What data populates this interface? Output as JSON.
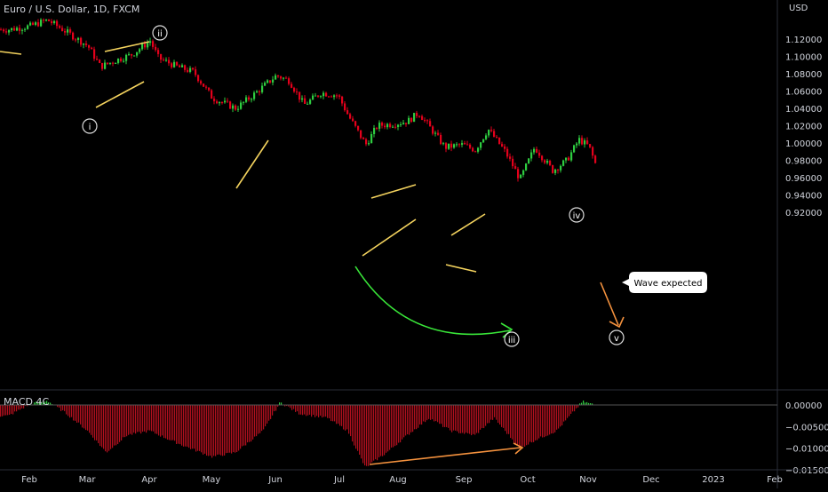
{
  "header": {
    "title": "Euro / U.S. Dollar, 1D, FXCM",
    "currency": "USD"
  },
  "macd": {
    "label": "MACD 4C",
    "ticks": [
      "0.00000",
      "−0.00500",
      "−0.01000",
      "−0.01500"
    ]
  },
  "colors": {
    "up": "#26a69a",
    "up_bright": "#2ecc40",
    "down": "#e3001b",
    "wedge": "#f4d35e",
    "arrow_orange": "#f5923e",
    "arrow_green": "#39e639",
    "bg": "#000000",
    "axis_text": "#d1d4dc"
  },
  "annotation": {
    "callout": "Wave expected"
  },
  "waves": [
    "i",
    "ii",
    "iii",
    "iv",
    "v"
  ],
  "chart_data": {
    "type": "candlestick",
    "price_axis": {
      "ticks": [
        "1.12000",
        "1.10000",
        "1.08000",
        "1.06000",
        "1.04000",
        "1.02000",
        "1.00000",
        "0.98000",
        "0.96000",
        "0.94000",
        "0.92000"
      ],
      "range": [
        0.92,
        1.13
      ]
    },
    "time_axis": {
      "ticks": [
        "Feb",
        "Mar",
        "Apr",
        "May",
        "Jun",
        "Jul",
        "Aug",
        "Sep",
        "Oct",
        "Nov",
        "Dec",
        "2023",
        "Feb"
      ]
    },
    "trend_path": [
      [
        "Jan 20",
        1.131
      ],
      [
        "Feb 1",
        1.135
      ],
      [
        "Feb 10",
        1.142
      ],
      [
        "Feb 20",
        1.128
      ],
      [
        "Mar 1",
        1.112
      ],
      [
        "Mar 7",
        1.088
      ],
      [
        "Mar 15",
        1.096
      ],
      [
        "Mar 22",
        1.102
      ],
      [
        "Mar 31",
        1.118
      ],
      [
        "Apr 5",
        1.098
      ],
      [
        "Apr 14",
        1.088
      ],
      [
        "Apr 22",
        1.082
      ],
      [
        "May 1",
        1.052
      ],
      [
        "May 12",
        1.04
      ],
      [
        "May 20",
        1.055
      ],
      [
        "May 31",
        1.078
      ],
      [
        "Jun 7",
        1.072
      ],
      [
        "Jun 14",
        1.044
      ],
      [
        "Jun 22",
        1.058
      ],
      [
        "Jun 30",
        1.055
      ],
      [
        "Jul 5",
        1.032
      ],
      [
        "Jul 14",
        0.998
      ],
      [
        "Jul 20",
        1.02
      ],
      [
        "Jul 28",
        1.022
      ],
      [
        "Aug 5",
        1.025
      ],
      [
        "Aug 10",
        1.035
      ],
      [
        "Aug 22",
        0.995
      ],
      [
        "Aug 30",
        0.998
      ],
      [
        "Sep 6",
        0.992
      ],
      [
        "Sep 12",
        1.016
      ],
      [
        "Sep 20",
        0.99
      ],
      [
        "Sep 27",
        0.958
      ],
      [
        "Oct 4",
        0.995
      ],
      [
        "Oct 13",
        0.968
      ],
      [
        "Oct 20",
        0.98
      ],
      [
        "Oct 26",
        1.004
      ],
      [
        "Nov 1",
        0.996
      ],
      [
        "Nov 4",
        0.976
      ]
    ],
    "macd_path": [
      [
        "Jan 20",
        -0.0025
      ],
      [
        "Feb 1",
        0.0002
      ],
      [
        "Feb 10",
        0.001
      ],
      [
        "Feb 20",
        -0.002
      ],
      [
        "Mar 1",
        -0.006
      ],
      [
        "Mar 10",
        -0.011
      ],
      [
        "Mar 20",
        -0.007
      ],
      [
        "Apr 1",
        -0.006
      ],
      [
        "Apr 15",
        -0.009
      ],
      [
        "May 1",
        -0.012
      ],
      [
        "May 12",
        -0.011
      ],
      [
        "May 25",
        -0.006
      ],
      [
        "Jun 3",
        0.0006
      ],
      [
        "Jun 12",
        -0.002
      ],
      [
        "Jun 25",
        -0.003
      ],
      [
        "Jul 5",
        -0.006
      ],
      [
        "Jul 14",
        -0.0145
      ],
      [
        "Jul 25",
        -0.011
      ],
      [
        "Aug 5",
        -0.007
      ],
      [
        "Aug 15",
        -0.003
      ],
      [
        "Aug 25",
        -0.006
      ],
      [
        "Sep 6",
        -0.007
      ],
      [
        "Sep 15",
        -0.003
      ],
      [
        "Sep 27",
        -0.01
      ],
      [
        "Oct 5",
        -0.008
      ],
      [
        "Oct 15",
        -0.006
      ],
      [
        "Oct 28",
        0.0008
      ],
      [
        "Nov 4",
        0.0
      ]
    ]
  }
}
